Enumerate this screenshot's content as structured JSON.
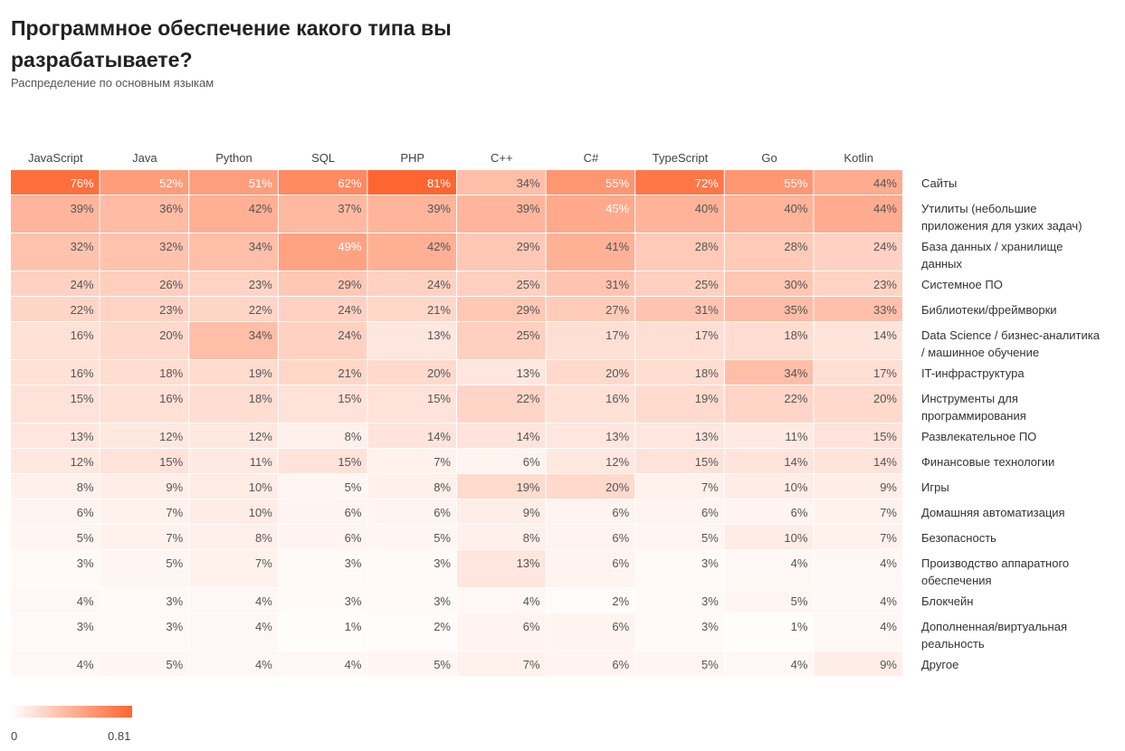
{
  "title": "Программное обеспечение какого типа вы разрабатываете?",
  "subtitle": "Распределение по основным языкам",
  "legend": {
    "min_label": "0",
    "max_label": "0.81",
    "color_low": "#ffffff",
    "color_high": "#ff6530"
  },
  "chart_data": {
    "type": "heatmap",
    "columns": [
      "JavaScript",
      "Java",
      "Python",
      "SQL",
      "PHP",
      "C++",
      "C#",
      "TypeScript",
      "Go",
      "Kotlin"
    ],
    "rows": [
      "Сайты",
      "Утилиты (небольшие приложения для узких задач)",
      "База данных / хранилище данных",
      "Системное ПО",
      "Библиотеки/фреймворки",
      "Data Science / бизнес-аналитика / машинное обучение",
      "IT-инфраструктура",
      "Инструменты для программирования",
      "Развлекательное ПО",
      "Финансовые технологии",
      "Игры",
      "Домашняя автоматизация",
      "Безопасность",
      "Производство аппаратного обеспечения",
      "Блокчейн",
      "Дополненная/виртуальная реальность",
      "Другое"
    ],
    "row_label_lines": [
      [
        "Сайты"
      ],
      [
        "Утилиты (небольшие",
        "приложения для узких задач)"
      ],
      [
        "База данных / хранилище",
        "данных"
      ],
      [
        "Системное ПО"
      ],
      [
        "Библиотеки/фреймворки"
      ],
      [
        "Data Science / бизнес-аналитика",
        "/ машинное обучение"
      ],
      [
        "IT-инфраструктура"
      ],
      [
        "Инструменты для",
        "программирования"
      ],
      [
        "Развлекательное ПО"
      ],
      [
        "Финансовые технологии"
      ],
      [
        "Игры"
      ],
      [
        "Домашняя автоматизация"
      ],
      [
        "Безопасность"
      ],
      [
        "Производство аппаратного",
        "обеспечения"
      ],
      [
        "Блокчейн"
      ],
      [
        "Дополненная/виртуальная",
        "реальность"
      ],
      [
        "Другое"
      ]
    ],
    "values": [
      [
        76,
        52,
        51,
        62,
        81,
        34,
        55,
        72,
        55,
        44
      ],
      [
        39,
        36,
        42,
        37,
        39,
        39,
        45,
        40,
        40,
        44
      ],
      [
        32,
        32,
        34,
        49,
        42,
        29,
        41,
        28,
        28,
        24
      ],
      [
        24,
        26,
        23,
        29,
        24,
        25,
        31,
        25,
        30,
        23
      ],
      [
        22,
        23,
        22,
        24,
        21,
        29,
        27,
        31,
        35,
        33
      ],
      [
        16,
        20,
        34,
        24,
        13,
        25,
        17,
        17,
        18,
        14
      ],
      [
        16,
        18,
        19,
        21,
        20,
        13,
        20,
        18,
        34,
        17
      ],
      [
        15,
        16,
        18,
        15,
        15,
        22,
        16,
        19,
        22,
        20
      ],
      [
        13,
        12,
        12,
        8,
        14,
        14,
        13,
        13,
        11,
        15
      ],
      [
        12,
        15,
        11,
        15,
        7,
        6,
        12,
        15,
        14,
        14
      ],
      [
        8,
        9,
        10,
        5,
        8,
        19,
        20,
        7,
        10,
        9
      ],
      [
        6,
        7,
        10,
        6,
        6,
        9,
        6,
        6,
        6,
        7
      ],
      [
        5,
        7,
        8,
        6,
        5,
        8,
        6,
        5,
        10,
        7
      ],
      [
        3,
        5,
        7,
        3,
        3,
        13,
        6,
        3,
        4,
        4
      ],
      [
        4,
        3,
        4,
        3,
        3,
        4,
        2,
        3,
        5,
        4
      ],
      [
        3,
        3,
        4,
        1,
        2,
        6,
        6,
        3,
        1,
        4
      ],
      [
        4,
        5,
        4,
        4,
        5,
        7,
        6,
        5,
        4,
        9
      ]
    ],
    "value_format": "percent",
    "color_range": [
      0,
      0.81
    ]
  }
}
